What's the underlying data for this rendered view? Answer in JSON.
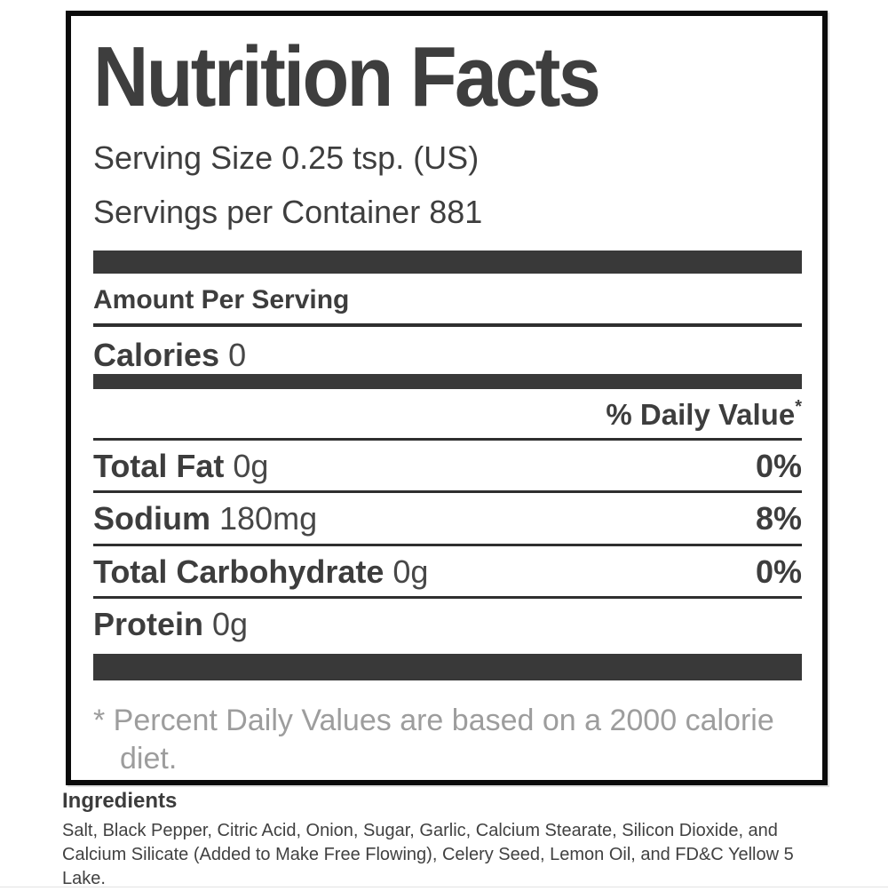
{
  "label": {
    "title": "Nutrition Facts",
    "serving_size": "Serving Size 0.25 tsp. (US)",
    "servings_per_container": "Servings per Container 881",
    "amount_per_serving": "Amount Per Serving",
    "calories": {
      "name": "Calories",
      "amount": "0"
    },
    "daily_value_header": "% Daily Value",
    "daily_value_superscript": "*",
    "nutrients": [
      {
        "name": "Total Fat",
        "amount": "0g",
        "dv": "0%"
      },
      {
        "name": "Sodium",
        "amount": "180mg",
        "dv": "8%"
      },
      {
        "name": "Total Carbohydrate",
        "amount": "0g",
        "dv": "0%"
      },
      {
        "name": "Protein",
        "amount": "0g",
        "dv": ""
      }
    ],
    "footnote": "* Percent Daily Values are based on a 2000 calorie diet."
  },
  "ingredients": {
    "heading": "Ingredients",
    "text": "Salt, Black Pepper, Citric Acid, Onion, Sugar, Garlic, Calcium Stearate, Silicon Dioxide, and Calcium Silicate (Added to Make Free Flowing), Celery Seed, Lemon Oil, and FD&C Yellow 5 Lake."
  },
  "colors": {
    "separator_bar": "#393939",
    "box_border": "#0b0b0b",
    "rule": "#2f2f2f",
    "text": "#3d3d3d",
    "footnote_text": "#9d9d9d",
    "bottom_hairline": "#e3e3e3"
  }
}
